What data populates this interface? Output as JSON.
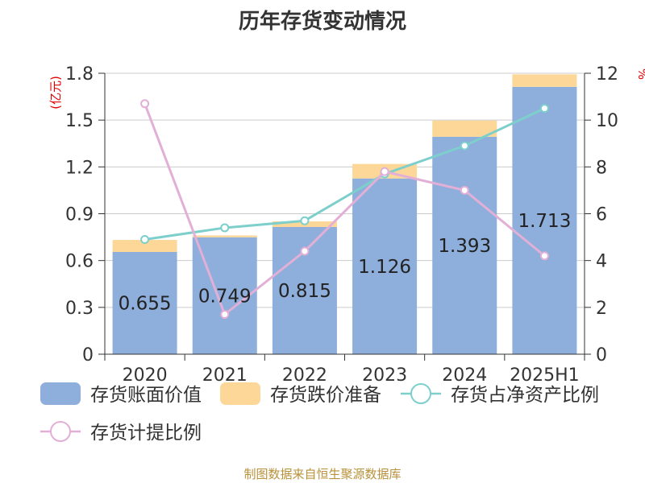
{
  "title": "历年存货变动情况",
  "source": "制图数据来自恒生聚源数据库",
  "chart_data": {
    "type": "bar",
    "categories": [
      "2020",
      "2021",
      "2022",
      "2023",
      "2024",
      "2025H1"
    ],
    "left_axis": {
      "unit": "(亿元)",
      "ylim": [
        0,
        1.8
      ],
      "ticks": [
        "0",
        "0.3",
        "0.6",
        "0.9",
        "1.2",
        "1.5",
        "1.8"
      ]
    },
    "right_axis": {
      "unit": "%",
      "ylim": [
        0,
        12
      ],
      "ticks": [
        "0",
        "2",
        "4",
        "6",
        "8",
        "10",
        "12"
      ]
    },
    "series": [
      {
        "name": "存货账面价值",
        "kind": "bar-stack",
        "axis": "left",
        "color": "#8eaedb",
        "values": [
          0.655,
          0.749,
          0.815,
          1.126,
          1.393,
          1.713
        ],
        "labels": [
          "0.655",
          "0.749",
          "0.815",
          "1.126",
          "1.393",
          "1.713"
        ]
      },
      {
        "name": "存货跌价准备",
        "kind": "bar-stack",
        "axis": "left",
        "color": "#fcd797",
        "values": [
          0.077,
          0.012,
          0.036,
          0.093,
          0.104,
          0.08
        ]
      },
      {
        "name": "存货占净资产比例",
        "kind": "line",
        "axis": "right",
        "color": "#7dcfcc",
        "values": [
          4.9,
          5.4,
          5.7,
          7.7,
          8.9,
          10.5
        ]
      },
      {
        "name": "存货计提比例",
        "kind": "line",
        "axis": "right",
        "color": "#e2b0d6",
        "values": [
          10.7,
          1.7,
          4.4,
          7.8,
          7.0,
          4.2
        ]
      }
    ],
    "grid": true,
    "legend_position": "bottom"
  }
}
